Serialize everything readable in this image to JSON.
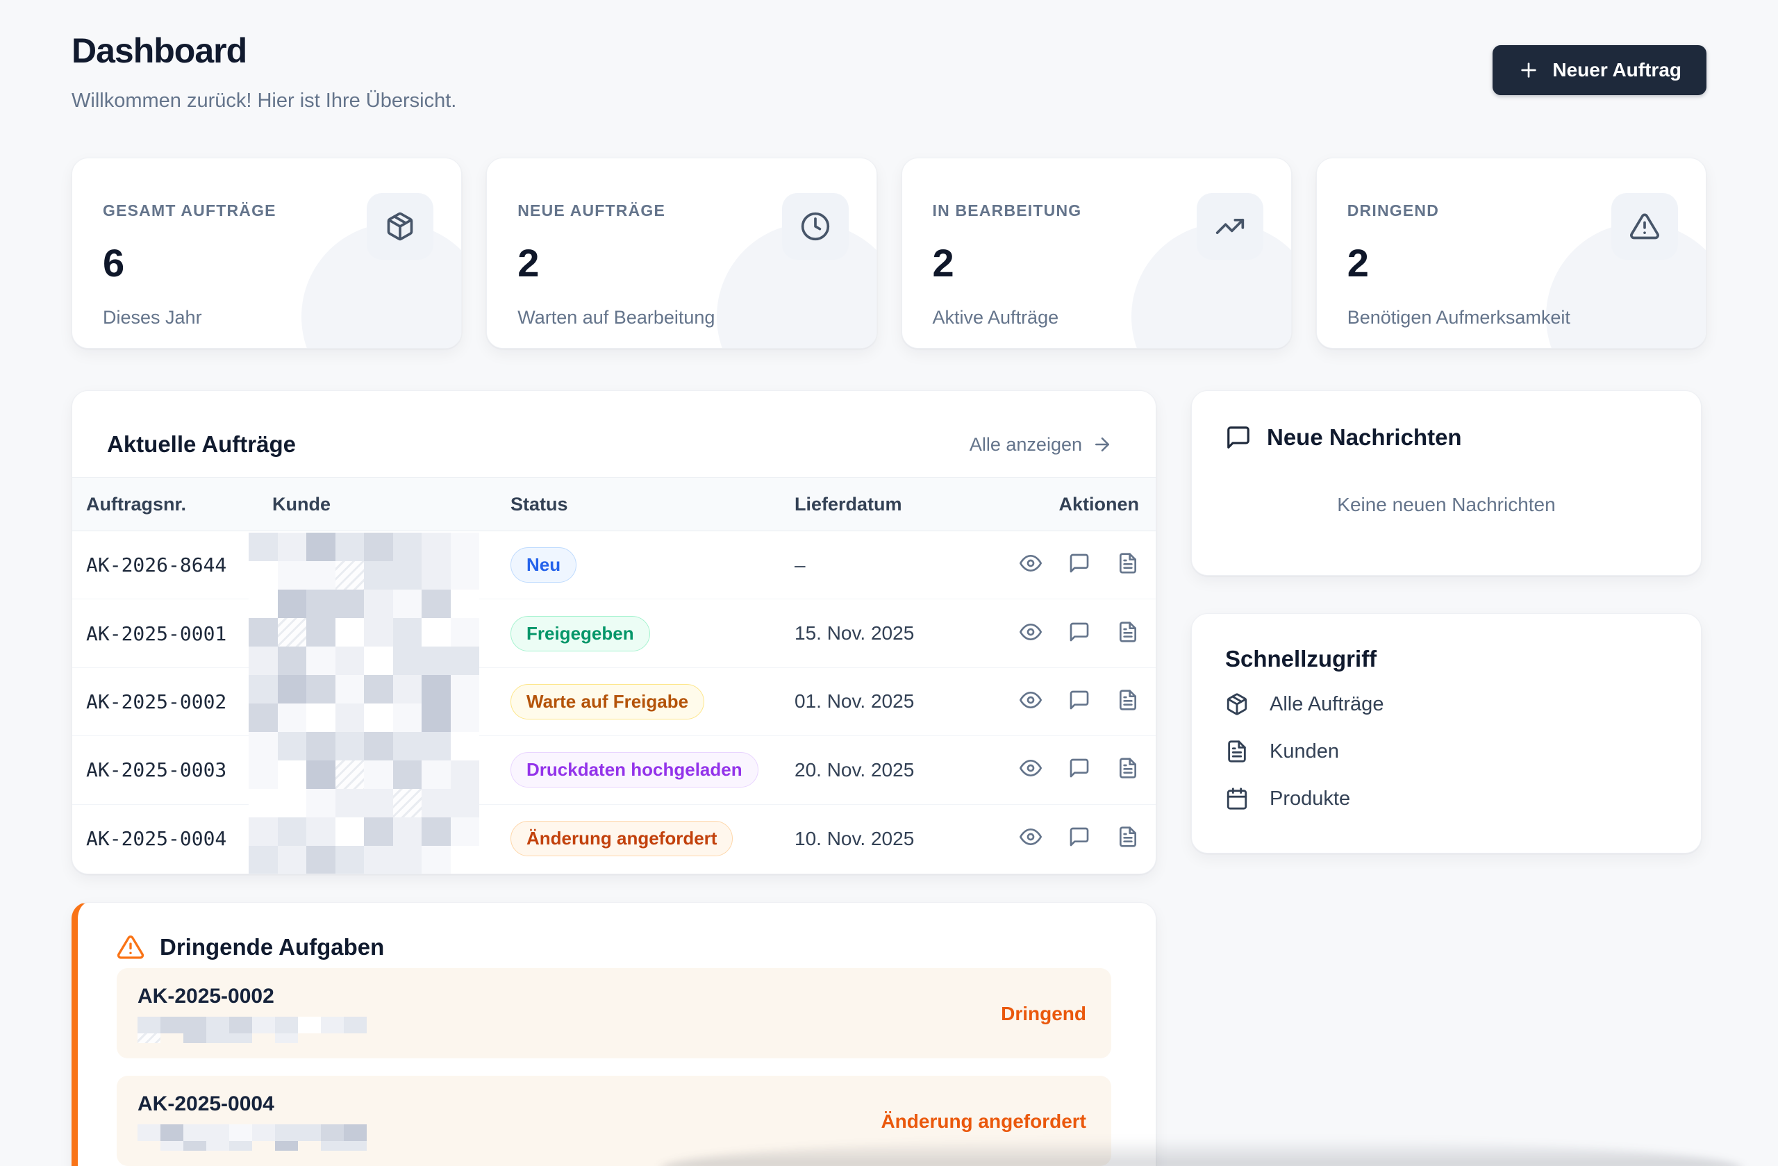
{
  "page": {
    "title": "Dashboard",
    "subtitle": "Willkommen zurück! Hier ist Ihre Übersicht."
  },
  "header": {
    "new_order_button": "Neuer Auftrag",
    "plus_icon": "plus-icon"
  },
  "stats": [
    {
      "label": "GESAMT AUFTRÄGE",
      "value": "6",
      "sub": "Dieses Jahr",
      "icon": "package-icon"
    },
    {
      "label": "NEUE AUFTRÄGE",
      "value": "2",
      "sub": "Warten auf Bearbeitung",
      "icon": "clock-icon"
    },
    {
      "label": "IN BEARBEITUNG",
      "value": "2",
      "sub": "Aktive Aufträge",
      "icon": "trending-up-icon"
    },
    {
      "label": "DRINGEND",
      "value": "2",
      "sub": "Benötigen Aufmerksamkeit",
      "icon": "alert-triangle-icon"
    }
  ],
  "orders_card": {
    "title": "Aktuelle Aufträge",
    "view_all": "Alle anzeigen",
    "view_all_icon": "arrow-right-icon",
    "columns": [
      "Auftragsnr.",
      "Kunde",
      "Status",
      "Lieferdatum",
      "Aktionen"
    ],
    "action_icons": [
      "eye-icon",
      "message-square-icon",
      "file-text-icon"
    ],
    "rows": [
      {
        "order_no": "AK-2026-8644",
        "status": "Neu",
        "status_color": "blue",
        "delivery": "–"
      },
      {
        "order_no": "AK-2025-0001",
        "status": "Freigegeben",
        "status_color": "green",
        "delivery": "15. Nov. 2025"
      },
      {
        "order_no": "AK-2025-0002",
        "status": "Warte auf Freigabe",
        "status_color": "amber",
        "delivery": "01. Nov. 2025"
      },
      {
        "order_no": "AK-2025-0003",
        "status": "Druckdaten hochgeladen",
        "status_color": "purple",
        "delivery": "20. Nov. 2025"
      },
      {
        "order_no": "AK-2025-0004",
        "status": "Änderung angefordert",
        "status_color": "orange",
        "delivery": "10. Nov. 2025"
      }
    ]
  },
  "status_styles": {
    "blue": {
      "fg": "#2563eb",
      "bg": "#eff6ff",
      "border": "#bfdbfe"
    },
    "green": {
      "fg": "#059669",
      "bg": "#ecfdf5",
      "border": "#a7f3d0"
    },
    "amber": {
      "fg": "#b45309",
      "bg": "#fffbeb",
      "border": "#fde68a"
    },
    "purple": {
      "fg": "#9333ea",
      "bg": "#faf5ff",
      "border": "#e9d5ff"
    },
    "orange": {
      "fg": "#c2410c",
      "bg": "#fff7ed",
      "border": "#fed7aa"
    }
  },
  "messages_card": {
    "icon": "message-square-icon",
    "title": "Neue Nachrichten",
    "empty": "Keine neuen Nachrichten"
  },
  "quick_access": {
    "title": "Schnellzugriff",
    "items": [
      {
        "label": "Alle Aufträge",
        "icon": "package-icon"
      },
      {
        "label": "Kunden",
        "icon": "file-text-icon"
      },
      {
        "label": "Produkte",
        "icon": "calendar-icon"
      }
    ]
  },
  "urgent": {
    "icon": "alert-triangle-icon",
    "title": "Dringende Aufgaben",
    "tasks": [
      {
        "order_no": "AK-2025-0002",
        "label": "Dringend"
      },
      {
        "order_no": "AK-2025-0004",
        "label": "Änderung angefordert"
      }
    ]
  },
  "colors": {
    "page_bg": "#f7f8fa",
    "primary_button_bg": "#1e293b",
    "urgent_accent": "#f97316",
    "urgent_text": "#ea580c",
    "heading_text": "#0f172a",
    "muted_text": "#64748b"
  }
}
